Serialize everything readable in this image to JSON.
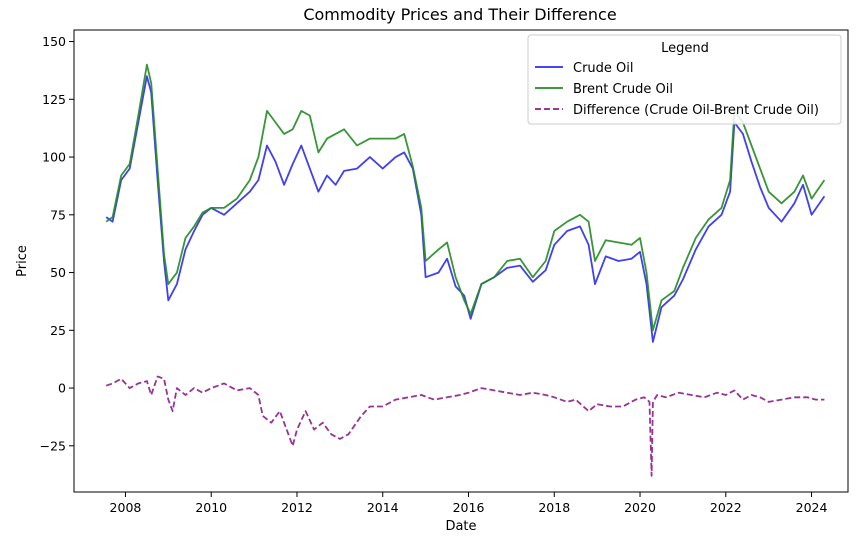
{
  "chart_data": {
    "type": "line",
    "title": "Commodity Prices and Their Difference",
    "xlabel": "Date",
    "ylabel": "Price",
    "xlim": [
      2006.8,
      2024.85
    ],
    "ylim": [
      -45,
      155
    ],
    "x_ticks": [
      2008,
      2010,
      2012,
      2014,
      2016,
      2018,
      2020,
      2022,
      2024
    ],
    "y_ticks": [
      -25,
      0,
      25,
      50,
      75,
      100,
      125,
      150
    ],
    "y_tick_labels": [
      "−25",
      "0",
      "25",
      "50",
      "75",
      "100",
      "125",
      "150"
    ],
    "grid": false,
    "legend": {
      "title": "Legend",
      "position": "top-right",
      "entries": [
        "Crude Oil",
        "Brent Crude Oil",
        "Difference (Crude Oil-Brent Crude Oil)"
      ]
    },
    "series": [
      {
        "name": "Crude Oil",
        "color": "#2b2bf0",
        "style": "solid",
        "x": [
          2007.55,
          2007.7,
          2007.9,
          2008.1,
          2008.3,
          2008.5,
          2008.6,
          2008.75,
          2008.9,
          2009.0,
          2009.2,
          2009.4,
          2009.6,
          2009.8,
          2010.0,
          2010.3,
          2010.6,
          2010.9,
          2011.1,
          2011.3,
          2011.5,
          2011.7,
          2011.9,
          2012.1,
          2012.3,
          2012.5,
          2012.7,
          2012.9,
          2013.1,
          2013.4,
          2013.7,
          2014.0,
          2014.3,
          2014.5,
          2014.7,
          2014.9,
          2015.0,
          2015.3,
          2015.5,
          2015.7,
          2015.9,
          2016.05,
          2016.3,
          2016.6,
          2016.9,
          2017.2,
          2017.5,
          2017.8,
          2018.0,
          2018.3,
          2018.6,
          2018.8,
          2018.95,
          2019.2,
          2019.5,
          2019.8,
          2020.0,
          2020.15,
          2020.3,
          2020.5,
          2020.8,
          2021.0,
          2021.3,
          2021.6,
          2021.9,
          2022.1,
          2022.2,
          2022.4,
          2022.6,
          2022.8,
          2023.0,
          2023.3,
          2023.6,
          2023.8,
          2024.0,
          2024.3
        ],
        "values": [
          74,
          72,
          90,
          95,
          115,
          135,
          128,
          90,
          55,
          38,
          45,
          60,
          68,
          75,
          78,
          75,
          80,
          85,
          90,
          105,
          98,
          88,
          97,
          105,
          95,
          85,
          92,
          88,
          94,
          95,
          100,
          95,
          100,
          102,
          95,
          75,
          48,
          50,
          56,
          44,
          40,
          30,
          45,
          48,
          52,
          53,
          46,
          51,
          62,
          68,
          70,
          62,
          45,
          57,
          55,
          56,
          59,
          45,
          20,
          35,
          40,
          47,
          60,
          70,
          75,
          85,
          115,
          110,
          98,
          87,
          78,
          72,
          80,
          88,
          75,
          83
        ]
      },
      {
        "name": "Brent Crude Oil",
        "color": "#228b22",
        "style": "solid",
        "x": [
          2007.55,
          2007.7,
          2007.9,
          2008.1,
          2008.3,
          2008.5,
          2008.6,
          2008.75,
          2008.9,
          2009.0,
          2009.2,
          2009.4,
          2009.6,
          2009.8,
          2010.0,
          2010.3,
          2010.6,
          2010.9,
          2011.1,
          2011.3,
          2011.5,
          2011.7,
          2011.9,
          2012.1,
          2012.3,
          2012.5,
          2012.7,
          2012.9,
          2013.1,
          2013.4,
          2013.7,
          2014.0,
          2014.3,
          2014.5,
          2014.7,
          2014.9,
          2015.0,
          2015.3,
          2015.5,
          2015.7,
          2015.9,
          2016.05,
          2016.3,
          2016.6,
          2016.9,
          2017.2,
          2017.5,
          2017.8,
          2018.0,
          2018.3,
          2018.6,
          2018.8,
          2018.95,
          2019.2,
          2019.5,
          2019.8,
          2020.0,
          2020.15,
          2020.3,
          2020.5,
          2020.8,
          2021.0,
          2021.3,
          2021.6,
          2021.9,
          2022.1,
          2022.2,
          2022.4,
          2022.6,
          2022.8,
          2023.0,
          2023.3,
          2023.6,
          2023.8,
          2024.0,
          2024.3
        ],
        "values": [
          72,
          74,
          92,
          97,
          118,
          140,
          132,
          95,
          58,
          45,
          50,
          65,
          70,
          76,
          78,
          78,
          82,
          90,
          100,
          120,
          115,
          110,
          112,
          120,
          118,
          102,
          108,
          110,
          112,
          105,
          108,
          108,
          108,
          110,
          96,
          78,
          55,
          60,
          63,
          48,
          38,
          32,
          45,
          48,
          55,
          56,
          48,
          55,
          68,
          72,
          75,
          72,
          55,
          64,
          63,
          62,
          65,
          50,
          25,
          38,
          42,
          52,
          65,
          73,
          78,
          90,
          120,
          115,
          105,
          95,
          85,
          80,
          85,
          92,
          82,
          90
        ]
      },
      {
        "name": "Difference (Crude Oil-Brent Crude Oil)",
        "color": "#8b1e8b",
        "style": "dashed",
        "x": [
          2007.55,
          2007.7,
          2007.9,
          2008.1,
          2008.3,
          2008.5,
          2008.6,
          2008.75,
          2008.9,
          2009.0,
          2009.1,
          2009.2,
          2009.4,
          2009.6,
          2009.8,
          2010.0,
          2010.3,
          2010.6,
          2010.9,
          2011.1,
          2011.2,
          2011.4,
          2011.6,
          2011.8,
          2011.9,
          2012.0,
          2012.2,
          2012.4,
          2012.6,
          2012.8,
          2013.0,
          2013.2,
          2013.5,
          2013.7,
          2014.0,
          2014.3,
          2014.6,
          2014.9,
          2015.2,
          2015.5,
          2015.8,
          2016.0,
          2016.3,
          2016.6,
          2016.9,
          2017.2,
          2017.5,
          2017.8,
          2018.0,
          2018.3,
          2018.5,
          2018.8,
          2019.0,
          2019.3,
          2019.6,
          2019.9,
          2020.1,
          2020.22,
          2020.27,
          2020.3,
          2020.4,
          2020.6,
          2020.9,
          2021.2,
          2021.5,
          2021.8,
          2022.0,
          2022.2,
          2022.4,
          2022.6,
          2022.8,
          2023.0,
          2023.3,
          2023.6,
          2023.9,
          2024.1,
          2024.3
        ],
        "values": [
          1,
          2,
          4,
          0,
          2,
          3,
          -3,
          5,
          4,
          -5,
          -10,
          0,
          -3,
          0,
          -2,
          0,
          2,
          -1,
          0,
          -3,
          -12,
          -15,
          -10,
          -20,
          -25,
          -18,
          -10,
          -18,
          -15,
          -20,
          -22,
          -20,
          -12,
          -8,
          -8,
          -5,
          -4,
          -3,
          -5,
          -4,
          -3,
          -2,
          0,
          -1,
          -2,
          -3,
          -2,
          -3,
          -4,
          -6,
          -5,
          -10,
          -7,
          -8,
          -8,
          -5,
          -4,
          -6,
          -38,
          -6,
          -3,
          -4,
          -2,
          -3,
          -4,
          -2,
          -3,
          -1,
          -5,
          -3,
          -4,
          -6,
          -5,
          -4,
          -4,
          -5,
          -5
        ]
      }
    ]
  }
}
